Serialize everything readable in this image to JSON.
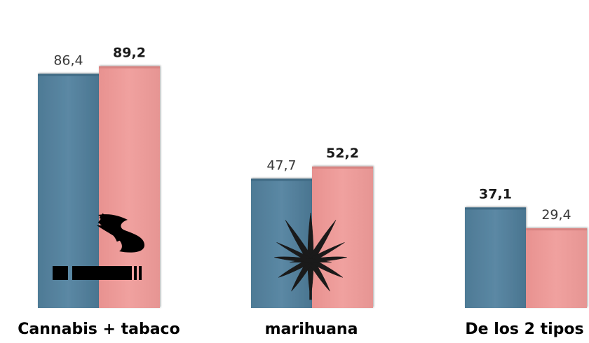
{
  "chart_data": {
    "type": "bar",
    "title": "",
    "xlabel": "",
    "ylabel": "",
    "ylim": [
      0,
      100
    ],
    "grid": false,
    "legend": "none",
    "categories": [
      "Cannabis + tabaco",
      "marihuana",
      "De los 2 tipos"
    ],
    "series": [
      {
        "color": "#5a87a3",
        "values": [
          86.4,
          47.7,
          37.1
        ],
        "labels": [
          "86,4",
          "47,7",
          "37,1"
        ],
        "label_bold": [
          false,
          false,
          true
        ]
      },
      {
        "color": "#ee9d9b",
        "values": [
          89.2,
          52.2,
          29.4
        ],
        "labels": [
          "89,2",
          "52,2",
          "29,4"
        ],
        "label_bold": [
          true,
          true,
          false
        ]
      }
    ],
    "icons": [
      "cigarette-smoke-icon",
      "cannabis-leaf-icon"
    ]
  }
}
